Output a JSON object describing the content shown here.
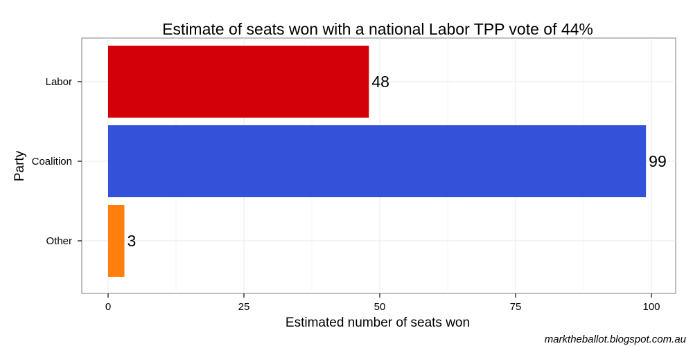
{
  "chart_data": {
    "type": "bar",
    "orientation": "horizontal",
    "title": "Estimate of seats won with a national Labor TPP vote of 44%",
    "xlabel": "Estimated number of seats won",
    "ylabel": "Party",
    "categories": [
      "Labor",
      "Coalition",
      "Other"
    ],
    "values": [
      48,
      99,
      3
    ],
    "data_labels": [
      "48",
      "99",
      "3"
    ],
    "colors": [
      "#d40008",
      "#3352d9",
      "#ff7f0e"
    ],
    "xlim": [
      0,
      100
    ],
    "xticks": [
      0,
      25,
      50,
      75,
      100
    ],
    "grid": true,
    "legend": "none"
  },
  "footer": {
    "credit": "marktheballot.blogspot.com.au"
  }
}
